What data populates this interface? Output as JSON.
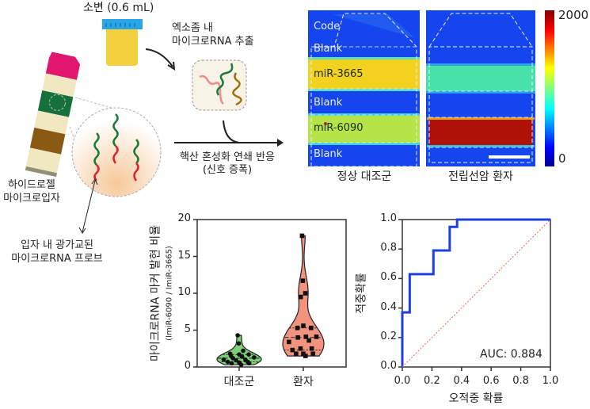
{
  "illustration": {
    "urine_label": "소변 (0.6 mL)",
    "extraction_label": [
      "엑소좀 내",
      "마이크로RNA 추출"
    ],
    "hydrogel_label": [
      "하이드로젤",
      "마이크로입자"
    ],
    "probe_label": [
      "입자 내 광가교된",
      "마이크로RNA 프로브"
    ],
    "reaction_label": [
      "핵산 혼성화 연쇄 반응",
      "(신호 증폭)"
    ]
  },
  "fluorescence": {
    "panels": [
      {
        "caption": "정상 대조군",
        "labels": {
          "code": "Code",
          "blank1": "Blank",
          "probe1": "miR-3665",
          "blank2": "Blank",
          "probe2": "miR-6090",
          "blank3": "Blank"
        },
        "band_colors": {
          "miR-3665": "#f2d21e",
          "miR-6090": "#b4e448"
        }
      },
      {
        "caption": "전립선암 환자",
        "band_colors": {
          "miR-3665": "#48e2a8",
          "miR-6090": "#b01208"
        }
      }
    ],
    "colorbar": {
      "max": "2000",
      "min": "0",
      "colormap": "jet"
    }
  },
  "chart_data": [
    {
      "type": "violin",
      "ylabel": "마이크로RNA 마커 발현 비율",
      "ylabel_sub": "(ImiR-6090 / ImiR-3665)",
      "ylim": [
        0,
        20
      ],
      "yticks": [
        "0",
        "5",
        "10",
        "15",
        "20"
      ],
      "categories": [
        "대조군",
        "환자"
      ],
      "series": [
        {
          "category": "대조군",
          "color": "#7dcf7a",
          "marker": "circle",
          "values": [
            4.3,
            3.2,
            2.2,
            1.8,
            1.7,
            1.7,
            1.5,
            1.4,
            1.3,
            1.2,
            1.0,
            1.0,
            0.9,
            0.7,
            0.7,
            0.6,
            0.5,
            0.5,
            0.3
          ]
        },
        {
          "category": "환자",
          "color": "#f2937f",
          "marker": "square",
          "values": [
            17.8,
            11.7,
            10.0,
            9.5,
            5.6,
            5.3,
            5.3,
            4.1,
            4.1,
            4.0,
            3.6,
            3.4,
            2.5,
            2.5,
            2.3,
            1.8,
            1.8,
            1.8,
            1.5
          ]
        }
      ]
    },
    {
      "type": "line",
      "xlabel": "오적중 확률",
      "ylabel": "적중확률",
      "xlim": [
        0,
        1
      ],
      "ylim": [
        0,
        1
      ],
      "xticks": [
        "0.0",
        "0.2",
        "0.4",
        "0.6",
        "0.8",
        "1.0"
      ],
      "yticks": [
        "0.0",
        "0.2",
        "0.4",
        "0.6",
        "0.8",
        "1.0"
      ],
      "series": [
        {
          "style": "roc",
          "color": "#1f3fe0",
          "x": [
            0,
            0,
            0.05,
            0.05,
            0.21,
            0.21,
            0.32,
            0.32,
            0.37,
            0.37,
            1.0
          ],
          "y": [
            0,
            0.37,
            0.37,
            0.63,
            0.63,
            0.79,
            0.79,
            0.95,
            0.95,
            1.0,
            1.0
          ]
        },
        {
          "style": "reference",
          "color": "#e07050",
          "x": [
            0,
            1
          ],
          "y": [
            0,
            1
          ]
        }
      ],
      "annotation": "AUC: 0.884"
    }
  ]
}
